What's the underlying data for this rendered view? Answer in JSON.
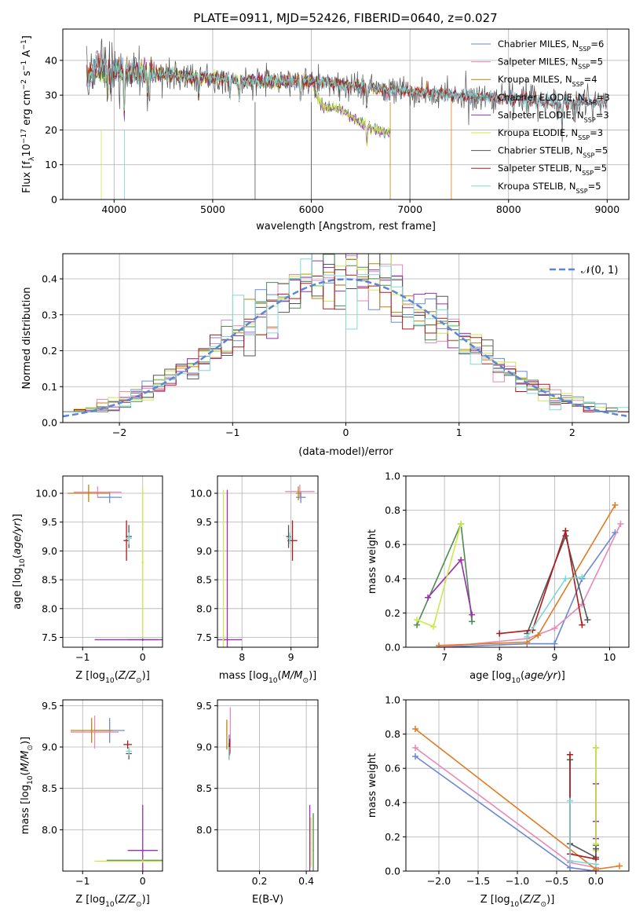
{
  "title": "PLATE=0911, MJD=52426, FIBERID=0640, z=0.027",
  "colors": {
    "Chabrier MILES": "#6a89d4",
    "Salpeter MILES": "#e889b8",
    "Kroupa MILES": "#b8860b",
    "Chabrier ELODIE": "#4f8a4f",
    "Salpeter ELODIE": "#9a2fb0",
    "Kroupa ELODIE": "#cde84a",
    "Chabrier STELIB": "#555555",
    "Salpeter STELIB": "#b01a1a",
    "Kroupa STELIB": "#7fd8d8",
    "orange": "#e07b22",
    "gauss": "#5b86d4"
  },
  "chart_data": [
    {
      "type": "line",
      "name": "spectrum",
      "xlabel": "wavelength [Angstrom, rest frame]",
      "ylabel": "Flux [f_λ 10^-17 erg cm^-2 s^-1 A^-1]",
      "xlim": [
        3480,
        9220
      ],
      "ylim": [
        0,
        49
      ],
      "xticks": [
        4000,
        5000,
        6000,
        7000,
        8000,
        9000
      ],
      "yticks": [
        0,
        10,
        20,
        30,
        40
      ],
      "grid": true,
      "legend_position": "top-right",
      "legend": [
        {
          "model": "Chabrier MILES",
          "label": "Chabrier MILES, N",
          "sub": "SSP",
          "suffix": "=6"
        },
        {
          "model": "Salpeter MILES",
          "label": "Salpeter MILES, N",
          "sub": "SSP",
          "suffix": "=5"
        },
        {
          "model": "Kroupa MILES",
          "label": "Kroupa MILES, N",
          "sub": "SSP",
          "suffix": "=4"
        },
        {
          "model": "Chabrier ELODIE",
          "label": "Chabrier ELODIE, N",
          "sub": "SSP",
          "suffix": "=3"
        },
        {
          "model": "Salpeter ELODIE",
          "label": "Salpeter ELODIE, N",
          "sub": "SSP",
          "suffix": "=3"
        },
        {
          "model": "Kroupa ELODIE",
          "label": "Kroupa ELODIE, N",
          "sub": "SSP",
          "suffix": "=3"
        },
        {
          "model": "Chabrier STELIB",
          "label": "Chabrier STELIB, N",
          "sub": "SSP",
          "suffix": "=5"
        },
        {
          "model": "Salpeter STELIB",
          "label": "Salpeter STELIB, N",
          "sub": "SSP",
          "suffix": "=5"
        },
        {
          "model": "Kroupa STELIB",
          "label": "Kroupa STELIB, N",
          "sub": "SSP",
          "suffix": "=5"
        }
      ],
      "continuum": [
        [
          3750,
          35
        ],
        [
          3850,
          39
        ],
        [
          3950,
          38
        ],
        [
          4100,
          37
        ],
        [
          4300,
          36
        ],
        [
          4500,
          36
        ],
        [
          4800,
          35
        ],
        [
          5000,
          35
        ],
        [
          5300,
          34
        ],
        [
          5600,
          34
        ],
        [
          6000,
          34
        ],
        [
          6300,
          33
        ],
        [
          6600,
          32
        ],
        [
          7000,
          31
        ],
        [
          7500,
          30
        ],
        [
          8000,
          29
        ],
        [
          8500,
          28
        ],
        [
          9000,
          28
        ]
      ],
      "elodie_cont": [
        [
          3750,
          35
        ],
        [
          4000,
          37
        ],
        [
          4500,
          36
        ],
        [
          5000,
          35
        ],
        [
          5500,
          34
        ],
        [
          6000,
          34
        ],
        [
          6100,
          27
        ],
        [
          6300,
          26
        ],
        [
          6600,
          20
        ],
        [
          6800,
          19
        ]
      ],
      "ranges": {
        "miles_end": 7420,
        "elodie_end": 6800,
        "stelib_end": 9000
      }
    },
    {
      "type": "histogram",
      "name": "residuals",
      "xlabel": "(data-model)/error",
      "ylabel": "Normed distribution",
      "xlim": [
        -2.5,
        2.5
      ],
      "ylim": [
        0,
        0.47
      ],
      "xticks": [
        -2,
        -1,
        0,
        1,
        2
      ],
      "yticks": [
        0.0,
        0.1,
        0.2,
        0.3,
        0.4
      ],
      "grid": true,
      "legend_position": "top-right",
      "gauss_label": "𝒩(0, 1)",
      "bin_width": 0.1
    },
    {
      "type": "scatter",
      "name": "age_vs_Z",
      "xlabel": "Z [log10(Z/Z☉)]",
      "ylabel": "age [log10(age/yr)]",
      "xlim": [
        -1.33,
        0.33
      ],
      "ylim": [
        7.33,
        10.3
      ],
      "xticks": [
        -1,
        0
      ],
      "yticks": [
        7.5,
        8.0,
        8.5,
        9.0,
        9.5,
        10.0
      ],
      "grid": true,
      "points": [
        {
          "model": "Chabrier MILES",
          "x": -0.55,
          "y": 9.93,
          "xerr": 0.2,
          "yerr": 0.1
        },
        {
          "model": "Salpeter MILES",
          "x": -0.75,
          "y": 10.02,
          "xerr": 0.4,
          "yerr": 0.1
        },
        {
          "model": "Kroupa MILES",
          "x": -0.9,
          "y": 10.0,
          "xerr": 0.35,
          "yerr": 0.15
        },
        {
          "model": "Chabrier ELODIE",
          "x": 0.0,
          "y": 7.46,
          "xerr": 0.25,
          "yerr": 0.02
        },
        {
          "model": "Salpeter ELODIE",
          "x": 0.0,
          "y": 7.46,
          "xerr": 0.8,
          "yerr": 0.02
        },
        {
          "model": "Kroupa ELODIE",
          "x": 0.0,
          "y": 8.8,
          "xerr": 0.02,
          "yerr": 1.3
        },
        {
          "model": "Chabrier STELIB",
          "x": -0.23,
          "y": 9.25,
          "xerr": 0.05,
          "yerr": 0.2
        },
        {
          "model": "Salpeter STELIB",
          "x": -0.27,
          "y": 9.18,
          "xerr": 0.05,
          "yerr": 0.35
        },
        {
          "model": "Kroupa STELIB",
          "x": -0.23,
          "y": 9.22,
          "xerr": 0.05,
          "yerr": 0.1
        }
      ]
    },
    {
      "type": "scatter",
      "name": "age_vs_mass",
      "xlabel": "mass [log10(M/M☉)]",
      "ylabel": "",
      "xlim": [
        7.5,
        9.55
      ],
      "ylim": [
        7.33,
        10.3
      ],
      "xticks": [
        8,
        9
      ],
      "yticks": [
        7.5,
        8.0,
        8.5,
        9.0,
        9.5,
        10.0
      ],
      "grid": true,
      "points": [
        {
          "model": "Chabrier MILES",
          "x": 9.2,
          "y": 9.93,
          "xerr": 0.1,
          "yerr": 0.1
        },
        {
          "model": "Salpeter MILES",
          "x": 9.18,
          "y": 10.03,
          "xerr": 0.3,
          "yerr": 0.12
        },
        {
          "model": "Kroupa MILES",
          "x": 9.15,
          "y": 10.0,
          "xerr": 0.05,
          "yerr": 0.12
        },
        {
          "model": "Chabrier ELODIE",
          "x": 7.63,
          "y": 7.46,
          "xerr": 0.02,
          "yerr": 0.02
        },
        {
          "model": "Salpeter ELODIE",
          "x": 7.7,
          "y": 7.46,
          "xerr": 0.3,
          "yerr": 2.6
        },
        {
          "model": "Kroupa ELODIE",
          "x": 7.62,
          "y": 7.46,
          "xerr": 0.02,
          "yerr": 2.6
        },
        {
          "model": "Chabrier STELIB",
          "x": 8.95,
          "y": 9.25,
          "xerr": 0.05,
          "yerr": 0.2
        },
        {
          "model": "Salpeter STELIB",
          "x": 9.03,
          "y": 9.18,
          "xerr": 0.1,
          "yerr": 0.35
        },
        {
          "model": "Kroupa STELIB",
          "x": 8.97,
          "y": 9.22,
          "xerr": 0.05,
          "yerr": 0.1
        }
      ]
    },
    {
      "type": "line",
      "name": "mass_weight_vs_age",
      "xlabel": "age [log10(age/yr)]",
      "ylabel": "mass weight",
      "xlim": [
        6.3,
        10.35
      ],
      "ylim": [
        0,
        1
      ],
      "xticks": [
        7,
        8,
        9,
        10
      ],
      "yticks": [
        0.0,
        0.2,
        0.4,
        0.6,
        0.8,
        1.0
      ],
      "grid": true,
      "series": [
        {
          "model": "Chabrier MILES",
          "x": [
            6.9,
            8.5,
            9.0,
            9.5,
            10.1
          ],
          "y": [
            0.0,
            0.02,
            0.02,
            0.4,
            0.67
          ]
        },
        {
          "model": "Salpeter MILES",
          "x": [
            6.9,
            8.5,
            9.0,
            9.5,
            10.2
          ],
          "y": [
            0.0,
            0.05,
            0.11,
            0.25,
            0.72
          ]
        },
        {
          "model": "orange",
          "x": [
            6.9,
            8.5,
            8.7,
            10.1
          ],
          "y": [
            0.01,
            0.03,
            0.07,
            0.83
          ]
        },
        {
          "model": "Chabrier ELODIE",
          "x": [
            6.5,
            7.3,
            7.5
          ],
          "y": [
            0.13,
            0.72,
            0.15
          ]
        },
        {
          "model": "Salpeter ELODIE",
          "x": [
            6.7,
            7.3,
            7.5
          ],
          "y": [
            0.29,
            0.51,
            0.19
          ]
        },
        {
          "model": "Kroupa ELODIE",
          "x": [
            6.5,
            6.8,
            7.3
          ],
          "y": [
            0.16,
            0.12,
            0.72
          ]
        },
        {
          "model": "Chabrier STELIB",
          "x": [
            8.5,
            9.2,
            9.6
          ],
          "y": [
            0.08,
            0.65,
            0.16
          ]
        },
        {
          "model": "Salpeter STELIB",
          "x": [
            8.0,
            8.6,
            9.2,
            9.5
          ],
          "y": [
            0.08,
            0.1,
            0.68,
            0.13
          ]
        },
        {
          "model": "Kroupa STELIB",
          "x": [
            8.5,
            9.2,
            9.5
          ],
          "y": [
            0.06,
            0.4,
            0.41
          ]
        }
      ]
    },
    {
      "type": "scatter",
      "name": "mass_vs_Z",
      "xlabel": "Z [log10(Z/Z☉)]",
      "ylabel": "mass [log10(M/M☉)]",
      "xlim": [
        -1.33,
        0.33
      ],
      "ylim": [
        7.5,
        9.57
      ],
      "xticks": [
        -1,
        0
      ],
      "yticks": [
        8.0,
        8.5,
        9.0,
        9.5
      ],
      "grid": true,
      "points": [
        {
          "model": "Chabrier MILES",
          "x": -0.55,
          "y": 9.2,
          "xerr": 0.25,
          "yerr": 0.15
        },
        {
          "model": "Salpeter MILES",
          "x": -0.8,
          "y": 9.18,
          "xerr": 0.4,
          "yerr": 0.2
        },
        {
          "model": "Kroupa MILES",
          "x": -0.85,
          "y": 9.2,
          "xerr": 0.35,
          "yerr": 0.15
        },
        {
          "model": "Chabrier ELODIE",
          "x": 0.0,
          "y": 7.63,
          "xerr": 0.6,
          "yerr": 0.02
        },
        {
          "model": "Salpeter ELODIE",
          "x": 0.0,
          "y": 7.75,
          "xerr": 0.25,
          "yerr": 0.55
        },
        {
          "model": "Kroupa ELODIE",
          "x": 0.0,
          "y": 7.62,
          "xerr": 0.8,
          "yerr": 0.02
        },
        {
          "model": "Chabrier STELIB",
          "x": -0.23,
          "y": 8.92,
          "xerr": 0.05,
          "yerr": 0.07
        },
        {
          "model": "Salpeter STELIB",
          "x": -0.25,
          "y": 9.03,
          "xerr": 0.07,
          "yerr": 0.05
        },
        {
          "model": "Kroupa STELIB",
          "x": -0.23,
          "y": 8.95,
          "xerr": 0.05,
          "yerr": 0.05
        }
      ]
    },
    {
      "type": "scatter",
      "name": "mass_vs_EBV",
      "xlabel": "E(B-V)",
      "ylabel": "",
      "xlim": [
        0.02,
        0.45
      ],
      "ylim": [
        7.5,
        9.57
      ],
      "xticks": [
        0.2,
        0.4
      ],
      "yticks": [
        8.0,
        8.5,
        9.0,
        9.5
      ],
      "grid": true,
      "points": [
        {
          "model": "Chabrier MILES",
          "x": 0.07,
          "y": 9.0,
          "xerr": 0.002,
          "yerr": 0.15
        },
        {
          "model": "Salpeter MILES",
          "x": 0.075,
          "y": 9.2,
          "xerr": 0.002,
          "yerr": 0.28
        },
        {
          "model": "Kroupa MILES",
          "x": 0.06,
          "y": 9.15,
          "xerr": 0.002,
          "yerr": 0.18
        },
        {
          "model": "Chabrier ELODIE",
          "x": 0.43,
          "y": 7.75,
          "xerr": 0.002,
          "yerr": 0.45
        },
        {
          "model": "Salpeter ELODIE",
          "x": 0.415,
          "y": 7.85,
          "xerr": 0.002,
          "yerr": 0.45
        },
        {
          "model": "Kroupa ELODIE",
          "x": 0.42,
          "y": 7.85,
          "xerr": 0.002,
          "yerr": 0.3
        },
        {
          "model": "Chabrier STELIB",
          "x": 0.07,
          "y": 8.95,
          "xerr": 0.002,
          "yerr": 0.1
        },
        {
          "model": "Salpeter STELIB",
          "x": 0.072,
          "y": 9.0,
          "xerr": 0.002,
          "yerr": 0.1
        },
        {
          "model": "Kroupa STELIB",
          "x": 0.07,
          "y": 8.92,
          "xerr": 0.002,
          "yerr": 0.08
        }
      ]
    },
    {
      "type": "line",
      "name": "mass_weight_vs_Z",
      "xlabel": "Z [log10(Z/Z☉)]",
      "ylabel": "mass weight",
      "xlim": [
        -2.42,
        0.42
      ],
      "ylim": [
        0,
        1
      ],
      "xticks": [
        -2.0,
        -1.5,
        -1.0,
        -0.5,
        0.0
      ],
      "yticks": [
        0.0,
        0.2,
        0.4,
        0.6,
        0.8,
        1.0
      ],
      "grid": true,
      "series": [
        {
          "model": "Chabrier MILES",
          "x": [
            -2.3,
            -0.33,
            0.0
          ],
          "y": [
            0.67,
            0.02,
            0.0
          ]
        },
        {
          "model": "Salpeter MILES",
          "x": [
            -2.3,
            -0.33,
            0.0
          ],
          "y": [
            0.72,
            0.05,
            0.02
          ]
        },
        {
          "model": "orange",
          "x": [
            -2.3,
            0.0,
            0.3
          ],
          "y": [
            0.83,
            0.01,
            0.03
          ]
        },
        {
          "model": "Chabrier ELODIE",
          "x": [
            0.0,
            0.0,
            0.0
          ],
          "y": [
            0.13,
            0.72,
            0.15
          ]
        },
        {
          "model": "Salpeter ELODIE",
          "x": [
            0.0,
            0.0,
            0.0
          ],
          "y": [
            0.29,
            0.51,
            0.19
          ]
        },
        {
          "model": "Kroupa ELODIE",
          "x": [
            0.0,
            0.0,
            0.0
          ],
          "y": [
            0.16,
            0.12,
            0.72
          ]
        },
        {
          "model": "Chabrier STELIB",
          "x": [
            -0.33,
            -0.33,
            0.0,
            0.0
          ],
          "y": [
            0.65,
            0.16,
            0.08,
            0.13
          ]
        },
        {
          "model": "Salpeter STELIB",
          "x": [
            -0.33,
            -0.33,
            0.0
          ],
          "y": [
            0.68,
            0.1,
            0.07
          ]
        },
        {
          "model": "Kroupa STELIB",
          "x": [
            -0.33,
            -0.33,
            0.0
          ],
          "y": [
            0.41,
            0.06,
            0.04
          ]
        }
      ]
    }
  ]
}
